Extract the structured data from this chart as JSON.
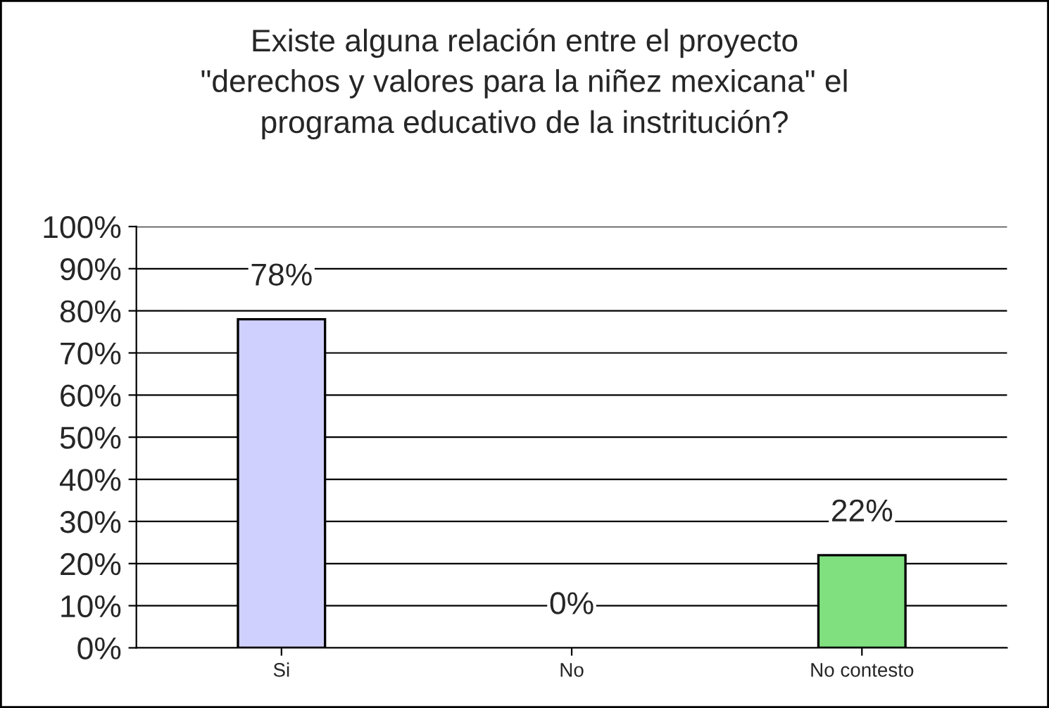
{
  "chart_data": {
    "type": "bar",
    "title": "Existe alguna relación entre el proyecto\n\"derechos y valores para la niñez mexicana\" el\nprograma educativo de la instritución?",
    "categories": [
      "Si",
      "No",
      "No contesto"
    ],
    "values": [
      78,
      0,
      22
    ],
    "colors": [
      "#d0d0ff",
      "#d0d0ff",
      "#80e080"
    ],
    "value_labels": [
      "78%",
      "0%",
      "22%"
    ],
    "ylim": [
      0,
      100
    ],
    "yticks": [
      {
        "value": 0,
        "label": "0%"
      },
      {
        "value": 10,
        "label": "10%"
      },
      {
        "value": 20,
        "label": "20%"
      },
      {
        "value": 30,
        "label": "30%"
      },
      {
        "value": 40,
        "label": "40%"
      },
      {
        "value": 50,
        "label": "50%"
      },
      {
        "value": 60,
        "label": "60%"
      },
      {
        "value": 70,
        "label": "70%"
      },
      {
        "value": 80,
        "label": "80%"
      },
      {
        "value": 90,
        "label": "90%"
      },
      {
        "value": 100,
        "label": "100%"
      }
    ],
    "grid": "y"
  }
}
